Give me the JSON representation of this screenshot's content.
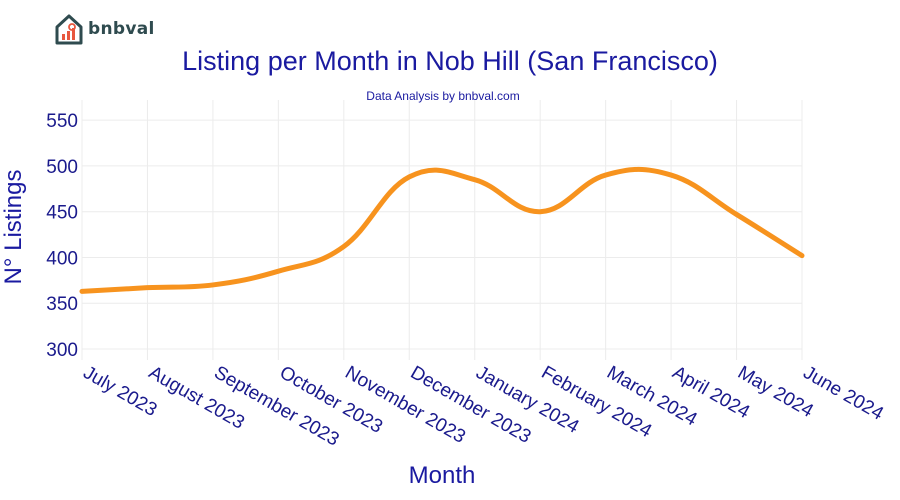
{
  "brand": {
    "name": "bnbval"
  },
  "chart_data": {
    "type": "line",
    "title": "Listing per Month in Nob Hill (San Francisco)",
    "subtitle": "Data Analysis by bnbval.com",
    "xlabel": "Month",
    "ylabel": "N° Listings",
    "categories": [
      "July 2023",
      "August 2023",
      "September 2023",
      "October 2023",
      "November 2023",
      "December 2023",
      "January 2024",
      "February 2024",
      "March 2024",
      "April 2024",
      "May 2024",
      "June 2024"
    ],
    "series": [
      {
        "values": [
          363,
          367,
          370,
          385,
          412,
          488,
          485,
          450,
          490,
          490,
          447,
          402
        ]
      }
    ],
    "ylim": [
      288,
      572
    ],
    "yticks": [
      300,
      350,
      400,
      450,
      500,
      550
    ],
    "grid": true,
    "line_color": "#f7931e"
  }
}
